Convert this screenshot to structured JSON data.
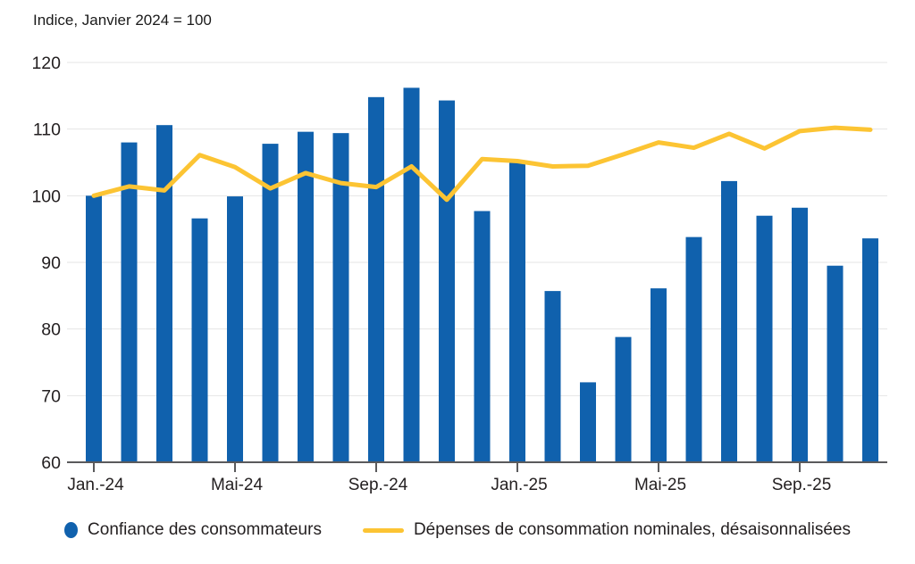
{
  "chart": {
    "subtitle": "Indice, Janvier 2024 = 100"
  },
  "legend": {
    "bars_label": "Confiance des consommateurs",
    "line_label": "Dépenses de consommation nominales, désaisonnalisées"
  },
  "colors": {
    "bar_blue": "#1061AD",
    "line_yellow": "#FCC433",
    "gridline": "#e5e5e5",
    "axis": "#5a5a5c",
    "text": "#231f20"
  },
  "chart_data": {
    "type": "bar+line combo",
    "subtitle": "Indice, Janvier 2024 = 100",
    "x_months": [
      "2024-01",
      "2024-02",
      "2024-03",
      "2024-04",
      "2024-05",
      "2024-06",
      "2024-07",
      "2024-08",
      "2024-09",
      "2024-10",
      "2024-11",
      "2024-12",
      "2025-01",
      "2025-02",
      "2025-03",
      "2025-04",
      "2025-05",
      "2025-06",
      "2025-07",
      "2025-08",
      "2025-09",
      "2025-10",
      "2025-11"
    ],
    "x_tick_positions": [
      0,
      4,
      8,
      12,
      16,
      20
    ],
    "x_tick_labels": [
      "Jan.-24",
      "Mai-24",
      "Sep.-24",
      "Jan.-25",
      "Mai-25",
      "Sep.-25"
    ],
    "ylim": [
      60,
      120
    ],
    "yticks": [
      60,
      70,
      80,
      90,
      100,
      110,
      120
    ],
    "grid": "horizontal",
    "legend_position": "bottom",
    "series": [
      {
        "name": "Confiance des consommateurs",
        "type": "bar",
        "color": "#1061AD",
        "values": [
          100.0,
          108.0,
          110.6,
          96.6,
          99.9,
          107.8,
          109.6,
          109.4,
          114.8,
          116.2,
          114.3,
          97.7,
          105.3,
          85.7,
          72.0,
          78.8,
          86.1,
          93.8,
          102.2,
          97.0,
          98.2,
          89.5,
          93.6
        ]
      },
      {
        "name": "Dépenses de consommation nominales, désaisonnalisées",
        "type": "line",
        "color": "#FCC433",
        "values": [
          100.0,
          101.4,
          100.8,
          106.1,
          104.3,
          101.1,
          103.4,
          101.9,
          101.3,
          104.4,
          99.4,
          105.5,
          105.2,
          104.4,
          104.5,
          106.2,
          108.0,
          107.2,
          109.3,
          107.1,
          109.7,
          110.2,
          109.9
        ]
      }
    ]
  }
}
